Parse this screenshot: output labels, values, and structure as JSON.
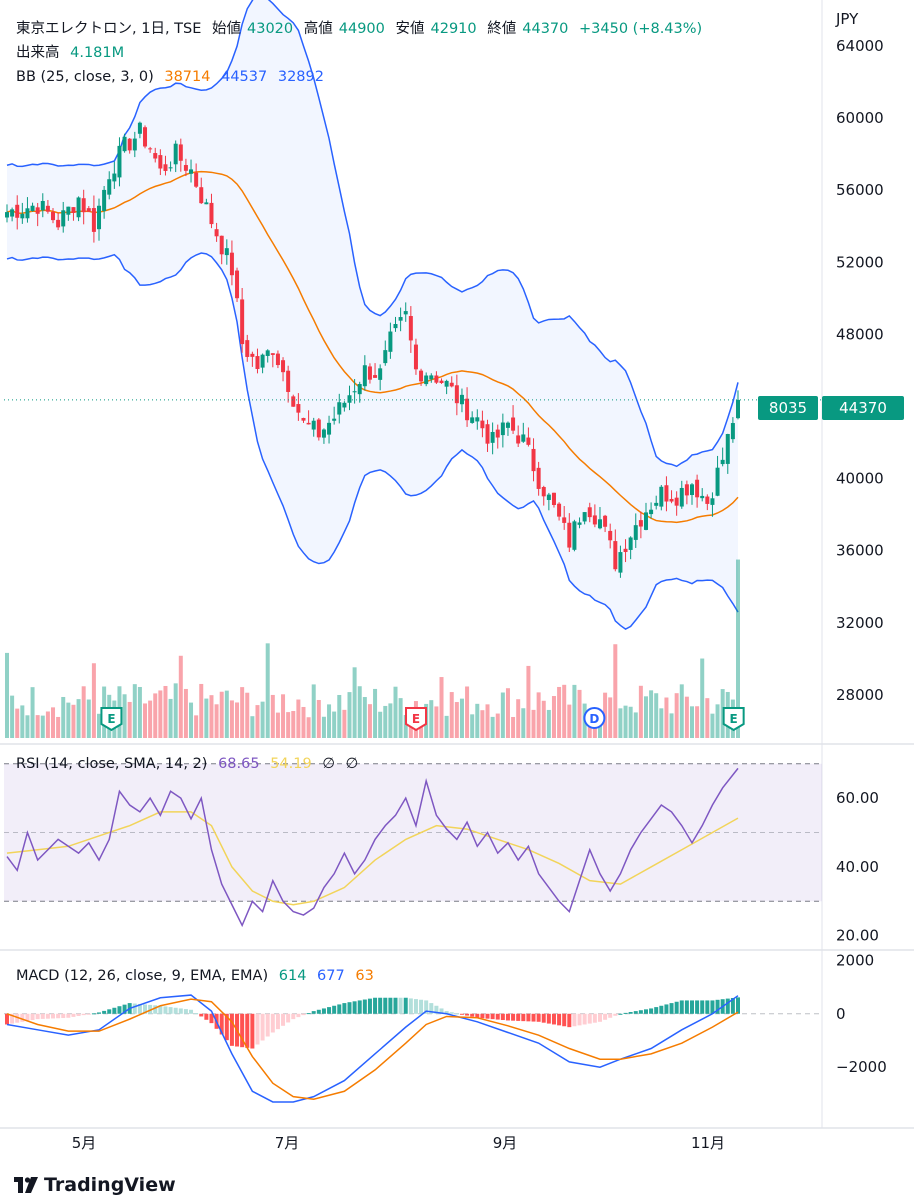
{
  "currency": "JPY",
  "legend": {
    "main": {
      "symbol": "東京エレクトロン, 1日, TSE",
      "open_label": "始値",
      "open": "43020",
      "high_label": "高値",
      "high": "44900",
      "low_label": "安値",
      "low": "42910",
      "close_label": "終値",
      "close": "44370",
      "change": "+3450 (+8.43%)"
    },
    "volume": {
      "label": "出来高",
      "value": "4.181M"
    },
    "bb": {
      "label": "BB (25, close, 3, 0)",
      "basis": "38714",
      "upper": "44537",
      "lower": "32892"
    },
    "rsi": {
      "label": "RSI (14, close, SMA, 14, 2)",
      "rsi": "68.65",
      "ma": "54.19",
      "b1": "∅",
      "b2": "∅"
    },
    "macd": {
      "label": "MACD (12, 26, close, 9, EMA, EMA)",
      "hist": "614",
      "macd": "677",
      "signal": "63"
    }
  },
  "price_tag": {
    "countdown": "8035",
    "price": "44370"
  },
  "events": [
    "E",
    "E",
    "D",
    "E"
  ],
  "x_axis_labels": [
    "5月",
    "7月",
    "9月",
    "11月"
  ],
  "brand": "TradingView",
  "colors": {
    "up": "#089981",
    "down": "#f23645",
    "bb_basis": "#f57c00",
    "bb_band": "#2962ff",
    "rsi": "#7e57c2",
    "rsi_ma": "#f2d45a",
    "macd": "#2962ff",
    "signal": "#f57c00"
  },
  "chart_data": [
    {
      "type": "candlestick",
      "title": "東京エレクトロン, 1日, TSE",
      "y_ticks": [
        28000,
        32000,
        36000,
        40000,
        44000,
        48000,
        52000,
        56000,
        60000,
        64000
      ],
      "y_tick_labels": [
        "28000",
        "32000",
        "36000",
        "40000",
        "44000",
        "48000",
        "52000",
        "56000",
        "60000",
        "64000"
      ],
      "ylim": [
        25500,
        66000
      ],
      "x_labels": [
        "5月",
        "7月",
        "9月",
        "11月"
      ],
      "last_close": 44370,
      "close_path": [
        [
          0,
          54800
        ],
        [
          6,
          55200
        ],
        [
          10,
          54200
        ],
        [
          14,
          55600
        ],
        [
          17,
          54100
        ],
        [
          20,
          57000
        ],
        [
          23,
          58400
        ],
        [
          26,
          59200
        ],
        [
          28,
          58400
        ],
        [
          30,
          57000
        ],
        [
          33,
          58000
        ],
        [
          36,
          57100
        ],
        [
          40,
          54300
        ],
        [
          44,
          51600
        ],
        [
          46,
          47500
        ],
        [
          49,
          46200
        ],
        [
          52,
          47300
        ],
        [
          55,
          45300
        ],
        [
          58,
          43000
        ],
        [
          61,
          42500
        ],
        [
          64,
          43400
        ],
        [
          67,
          44700
        ],
        [
          70,
          46000
        ],
        [
          73,
          45800
        ],
        [
          75,
          47600
        ],
        [
          78,
          49000
        ],
        [
          80,
          46000
        ],
        [
          83,
          45900
        ],
        [
          86,
          45200
        ],
        [
          89,
          44100
        ],
        [
          92,
          43300
        ],
        [
          95,
          42000
        ],
        [
          98,
          43000
        ],
        [
          101,
          42100
        ],
        [
          104,
          40000
        ],
        [
          107,
          38300
        ],
        [
          110,
          36500
        ],
        [
          113,
          38700
        ],
        [
          116,
          37700
        ],
        [
          119,
          35400
        ],
        [
          122,
          37000
        ],
        [
          125,
          38300
        ],
        [
          128,
          39200
        ],
        [
          131,
          39100
        ],
        [
          134,
          39800
        ],
        [
          137,
          38700
        ],
        [
          140,
          41100
        ],
        [
          143,
          44370
        ]
      ],
      "volume_note": "volume bars drawn at chart bottom"
    },
    {
      "type": "line",
      "title": "RSI (14, close, SMA, 14, 2)",
      "y_tick_labels": [
        "20.00",
        "40.00",
        "60.00"
      ],
      "y_ticks": [
        20,
        40,
        60
      ],
      "bands": [
        30,
        50,
        70
      ],
      "series": [
        {
          "name": "RSI",
          "points": [
            [
              0,
              43
            ],
            [
              2,
              39
            ],
            [
              4,
              50
            ],
            [
              6,
              42
            ],
            [
              8,
              45
            ],
            [
              10,
              48
            ],
            [
              12,
              46
            ],
            [
              14,
              44
            ],
            [
              16,
              47
            ],
            [
              18,
              42
            ],
            [
              20,
              48
            ],
            [
              22,
              62
            ],
            [
              24,
              58
            ],
            [
              26,
              56
            ],
            [
              28,
              60
            ],
            [
              30,
              55
            ],
            [
              32,
              62
            ],
            [
              34,
              60
            ],
            [
              36,
              54
            ],
            [
              38,
              60
            ],
            [
              40,
              45
            ],
            [
              42,
              35
            ],
            [
              44,
              29
            ],
            [
              46,
              23
            ],
            [
              48,
              30
            ],
            [
              50,
              27
            ],
            [
              52,
              36
            ],
            [
              54,
              30
            ],
            [
              56,
              27
            ],
            [
              58,
              26
            ],
            [
              60,
              28
            ],
            [
              62,
              34
            ],
            [
              64,
              38
            ],
            [
              66,
              44
            ],
            [
              68,
              38
            ],
            [
              70,
              42
            ],
            [
              72,
              48
            ],
            [
              74,
              52
            ],
            [
              76,
              55
            ],
            [
              78,
              60
            ],
            [
              80,
              52
            ],
            [
              82,
              65
            ],
            [
              84,
              55
            ],
            [
              86,
              51
            ],
            [
              88,
              48
            ],
            [
              90,
              53
            ],
            [
              92,
              46
            ],
            [
              94,
              50
            ],
            [
              96,
              44
            ],
            [
              98,
              47
            ],
            [
              100,
              42
            ],
            [
              102,
              46
            ],
            [
              104,
              38
            ],
            [
              106,
              34
            ],
            [
              108,
              30
            ],
            [
              110,
              27
            ],
            [
              112,
              36
            ],
            [
              114,
              45
            ],
            [
              116,
              38
            ],
            [
              118,
              33
            ],
            [
              120,
              38
            ],
            [
              122,
              45
            ],
            [
              124,
              50
            ],
            [
              126,
              54
            ],
            [
              128,
              58
            ],
            [
              130,
              56
            ],
            [
              132,
              52
            ],
            [
              134,
              47
            ],
            [
              136,
              52
            ],
            [
              138,
              58
            ],
            [
              140,
              63
            ],
            [
              143,
              68.65
            ]
          ]
        },
        {
          "name": "SMA",
          "points": [
            [
              0,
              44
            ],
            [
              6,
              45
            ],
            [
              12,
              46
            ],
            [
              18,
              49
            ],
            [
              24,
              52
            ],
            [
              30,
              56
            ],
            [
              36,
              56
            ],
            [
              40,
              52
            ],
            [
              44,
              40
            ],
            [
              48,
              33
            ],
            [
              52,
              30
            ],
            [
              56,
              29
            ],
            [
              60,
              30
            ],
            [
              66,
              34
            ],
            [
              72,
              42
            ],
            [
              78,
              48
            ],
            [
              84,
              52
            ],
            [
              90,
              51
            ],
            [
              96,
              48
            ],
            [
              102,
              45
            ],
            [
              108,
              41
            ],
            [
              114,
              36
            ],
            [
              120,
              35
            ],
            [
              126,
              40
            ],
            [
              132,
              45
            ],
            [
              138,
              50
            ],
            [
              143,
              54.19
            ]
          ]
        }
      ]
    },
    {
      "type": "line",
      "title": "MACD (12, 26, close, 9, EMA, EMA)",
      "y_tick_labels": [
        "2000",
        "0",
        "−2000"
      ],
      "y_ticks": [
        2000,
        0,
        -2000
      ],
      "series": [
        {
          "name": "MACD",
          "points": [
            [
              0,
              -400
            ],
            [
              6,
              -600
            ],
            [
              12,
              -800
            ],
            [
              18,
              -600
            ],
            [
              24,
              200
            ],
            [
              30,
              600
            ],
            [
              36,
              700
            ],
            [
              40,
              100
            ],
            [
              44,
              -1500
            ],
            [
              48,
              -2900
            ],
            [
              52,
              -3300
            ],
            [
              56,
              -3300
            ],
            [
              60,
              -3100
            ],
            [
              66,
              -2500
            ],
            [
              72,
              -1500
            ],
            [
              78,
              -500
            ],
            [
              82,
              100
            ],
            [
              86,
              0
            ],
            [
              92,
              -300
            ],
            [
              98,
              -700
            ],
            [
              104,
              -1100
            ],
            [
              110,
              -1800
            ],
            [
              116,
              -2000
            ],
            [
              120,
              -1700
            ],
            [
              126,
              -1300
            ],
            [
              132,
              -600
            ],
            [
              138,
              0
            ],
            [
              143,
              677
            ]
          ]
        },
        {
          "name": "Signal",
          "points": [
            [
              0,
              0
            ],
            [
              6,
              -400
            ],
            [
              12,
              -650
            ],
            [
              18,
              -650
            ],
            [
              24,
              -200
            ],
            [
              30,
              300
            ],
            [
              36,
              550
            ],
            [
              40,
              450
            ],
            [
              44,
              -300
            ],
            [
              48,
              -1600
            ],
            [
              52,
              -2600
            ],
            [
              56,
              -3100
            ],
            [
              60,
              -3200
            ],
            [
              66,
              -2900
            ],
            [
              72,
              -2100
            ],
            [
              78,
              -1100
            ],
            [
              82,
              -400
            ],
            [
              86,
              -100
            ],
            [
              92,
              -150
            ],
            [
              98,
              -450
            ],
            [
              104,
              -800
            ],
            [
              110,
              -1300
            ],
            [
              116,
              -1700
            ],
            [
              120,
              -1700
            ],
            [
              126,
              -1500
            ],
            [
              132,
              -1100
            ],
            [
              138,
              -500
            ],
            [
              143,
              63
            ]
          ]
        }
      ]
    }
  ]
}
